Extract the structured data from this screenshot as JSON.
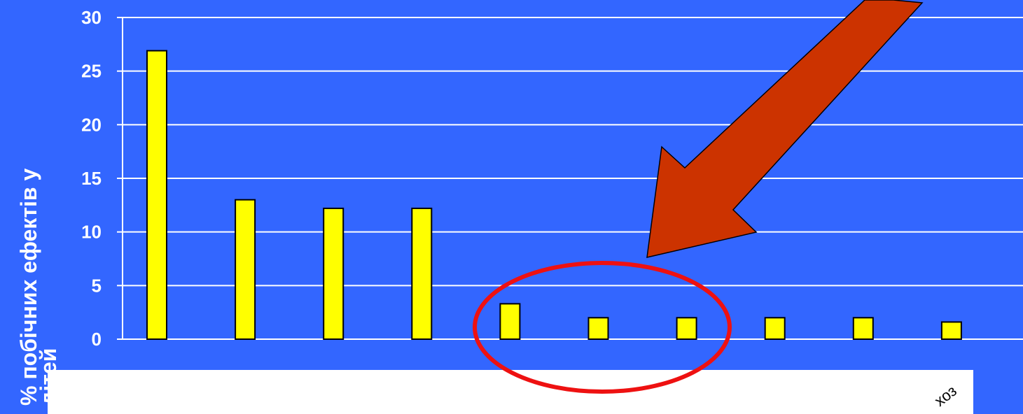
{
  "chart_data": {
    "type": "bar",
    "ylabel_lines": [
      "% побічних ефектів у",
      "дітей"
    ],
    "yticks": [
      0,
      5,
      10,
      15,
      20,
      25,
      30
    ],
    "ylim": [
      0,
      30
    ],
    "grid": true,
    "values": [
      26.9,
      13,
      12.2,
      12.2,
      3.3,
      2,
      2,
      2,
      2,
      1.6
    ],
    "partial_category_label": "хоз"
  },
  "colors": {
    "background": "#3366FF",
    "bar": "#FFFF00",
    "grid": "#FFFFFF",
    "arrow": "#CC3300",
    "circle": "#EE1111",
    "label_panel": "#FFFFFF"
  }
}
